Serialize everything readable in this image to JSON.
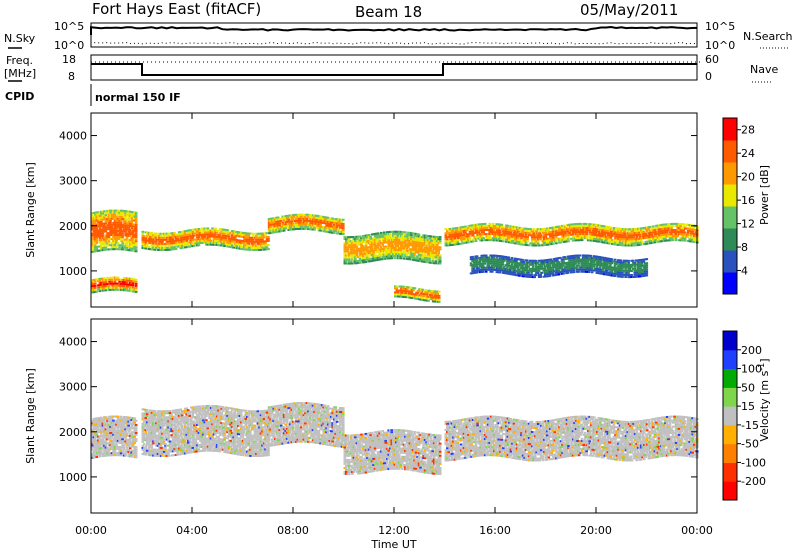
{
  "header": {
    "title": "Fort Hays East (fitACF)",
    "beam": "Beam 18",
    "date": "05/May/2011"
  },
  "top_panels": {
    "nsky_label": "N.Sky",
    "nsearch_label": "N.Search",
    "nsky_ticks": [
      "10^5",
      "10^0"
    ],
    "freq_label_line1": "Freq.",
    "freq_label_line2": "[MHz]",
    "freq_ticks": [
      "18",
      "8"
    ],
    "nave_label": "Nave",
    "nave_ticks": [
      "60",
      "0"
    ],
    "cpid_label": "CPID",
    "cpid_value": "normal 150 IF"
  },
  "chart_data": [
    {
      "type": "heatmap",
      "name": "Power",
      "xlabel": "Time UT",
      "ylabel": "Slant Range [km]",
      "x_ticks": [
        "00:00",
        "04:00",
        "08:00",
        "12:00",
        "16:00",
        "20:00",
        "00:00"
      ],
      "y_ticks": [
        1000,
        2000,
        3000,
        4000
      ],
      "ylim": [
        200,
        4500
      ],
      "xlim_hours": [
        0,
        24
      ],
      "colorbar_label": "Power [dB]",
      "colorbar_ticks": [
        4,
        8,
        12,
        16,
        20,
        24,
        28
      ],
      "colorbar_range": [
        0,
        30
      ],
      "bands": [
        {
          "t": [
            0,
            1.8
          ],
          "range": [
            1400,
            2300
          ],
          "level": 26
        },
        {
          "t": [
            0,
            1.8
          ],
          "range": [
            500,
            800
          ],
          "level": 27
        },
        {
          "t": [
            2.0,
            7.0
          ],
          "range": [
            1500,
            1900
          ],
          "level": 24
        },
        {
          "t": [
            7.0,
            10.0
          ],
          "range": [
            1850,
            2200
          ],
          "level": 24
        },
        {
          "t": [
            10.0,
            13.8
          ],
          "range": [
            1200,
            1800
          ],
          "level": 22
        },
        {
          "t": [
            12.0,
            13.8
          ],
          "range": [
            350,
            600
          ],
          "level": 25
        },
        {
          "t": [
            14.0,
            24.0
          ],
          "range": [
            1600,
            2000
          ],
          "level": 24
        },
        {
          "t": [
            15.0,
            22.0
          ],
          "range": [
            900,
            1300
          ],
          "level": 10
        }
      ]
    },
    {
      "type": "heatmap",
      "name": "Velocity",
      "xlabel": "Time UT",
      "ylabel": "Slant Range [km]",
      "x_ticks": [
        "00:00",
        "04:00",
        "08:00",
        "12:00",
        "16:00",
        "20:00",
        "00:00"
      ],
      "y_ticks": [
        1000,
        2000,
        3000,
        4000
      ],
      "ylim": [
        200,
        4500
      ],
      "xlim_hours": [
        0,
        24
      ],
      "colorbar_label": "Velocity [m s^-1]",
      "colorbar_ticks": [
        200,
        100,
        50,
        15,
        -15,
        -50,
        -100,
        -200
      ],
      "bands": [
        {
          "t": [
            0,
            1.8
          ],
          "range": [
            1400,
            2300
          ],
          "level": 0
        },
        {
          "t": [
            2.0,
            7.0
          ],
          "range": [
            1500,
            2500
          ],
          "level": 0
        },
        {
          "t": [
            7.0,
            10.0
          ],
          "range": [
            1700,
            2600
          ],
          "level": 0
        },
        {
          "t": [
            10.0,
            13.8
          ],
          "range": [
            1100,
            2000
          ],
          "level": 0
        },
        {
          "t": [
            14.0,
            24.0
          ],
          "range": [
            1400,
            2300
          ],
          "level": 0
        }
      ]
    }
  ],
  "colors": {
    "power_scale": [
      "#0000ff",
      "#2a52be",
      "#2e8b57",
      "#66c266",
      "#e8e800",
      "#ff9900",
      "#ff5a00",
      "#ff0000"
    ],
    "velocity_scale": [
      "#0000cc",
      "#2040ff",
      "#00aa00",
      "#7fd64c",
      "#c0c0c0",
      "#ffb000",
      "#ff7f00",
      "#ff3000",
      "#ff0000"
    ],
    "background": "#ffffff"
  }
}
